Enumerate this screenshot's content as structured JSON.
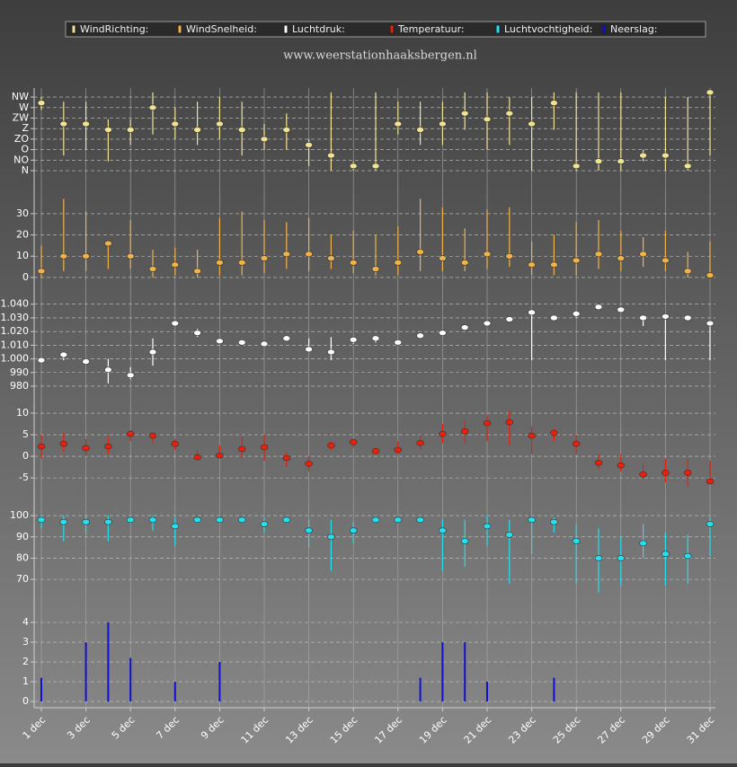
{
  "subtitle": "www.weerstationhaaksbergen.nl",
  "categories": [
    "1 dec",
    null,
    "3 dec",
    null,
    "5 dec",
    null,
    "7 dec",
    null,
    "9 dec",
    null,
    "11 dec",
    null,
    "13 dec",
    null,
    "15 dec",
    null,
    "17 dec",
    null,
    "19 dec",
    null,
    "21 dec",
    null,
    "23 dec",
    null,
    "25 dec",
    null,
    "27 dec",
    null,
    "29 dec",
    null,
    "31 dec"
  ],
  "grid": true,
  "chart_data": [
    {
      "type": "range",
      "ylim": [
        -23,
        346
      ],
      "yticks": [
        {
          "value": 0,
          "label": "N"
        },
        {
          "value": 45,
          "label": "NO"
        },
        {
          "value": 90,
          "label": "O"
        },
        {
          "value": 135,
          "label": "ZO"
        },
        {
          "value": 180,
          "label": "Z"
        },
        {
          "value": 225,
          "label": "ZW"
        },
        {
          "value": 270,
          "label": "W"
        },
        {
          "value": 315,
          "label": "NW"
        }
      ],
      "series": [
        {
          "name": "WindRichting:",
          "color": "#f2e394",
          "values": [
            290,
            200,
            200,
            175,
            175,
            270,
            200,
            175,
            200,
            175,
            135,
            175,
            110,
            65,
            20,
            20,
            200,
            175,
            200,
            245,
            220,
            245,
            200,
            290,
            20,
            40,
            40,
            65,
            65,
            20,
            335
          ],
          "high": [
            315,
            295,
            295,
            220,
            220,
            335,
            270,
            295,
            315,
            295,
            200,
            245,
            135,
            335,
            40,
            335,
            295,
            295,
            295,
            335,
            335,
            315,
            315,
            335,
            335,
            335,
            335,
            90,
            315,
            315,
            335
          ],
          "low": [
            260,
            65,
            90,
            40,
            110,
            155,
            135,
            110,
            135,
            65,
            90,
            90,
            20,
            0,
            0,
            0,
            155,
            110,
            110,
            175,
            90,
            110,
            0,
            175,
            0,
            0,
            0,
            40,
            0,
            0,
            65
          ]
        }
      ]
    },
    {
      "type": "range",
      "ylim": [
        -1.3,
        38.4
      ],
      "yticks": [
        0,
        10,
        20,
        30
      ],
      "series": [
        {
          "name": "WindSnelheid:",
          "color": "#f0b24a",
          "values": [
            3,
            10,
            10,
            16,
            10,
            4,
            6,
            3,
            7,
            7,
            9,
            11,
            11,
            9,
            7,
            4,
            7,
            12,
            9,
            7,
            11,
            10,
            6,
            6,
            8,
            11,
            9,
            11,
            8,
            3,
            1
          ],
          "high": [
            15,
            37,
            31,
            17,
            27,
            13,
            14,
            13,
            28,
            31,
            27,
            26,
            28,
            20,
            22,
            20,
            24,
            37,
            33,
            23,
            32,
            33,
            17,
            20,
            26,
            27,
            22,
            19,
            22,
            12,
            17
          ],
          "low": [
            0,
            3,
            3,
            4,
            4,
            0,
            1,
            0,
            1,
            1,
            2,
            4,
            3,
            4,
            2,
            1,
            1,
            3,
            3,
            3,
            4,
            5,
            1,
            1,
            1,
            4,
            3,
            5,
            3,
            0,
            0
          ]
        }
      ]
    },
    {
      "type": "range",
      "ylim": [
        973.4,
        1051
      ],
      "yticks": [
        980,
        990,
        {
          "value": 1000,
          "label": "1.000"
        },
        {
          "value": 1010,
          "label": "1.010"
        },
        {
          "value": 1020,
          "label": "1.020"
        },
        {
          "value": 1030,
          "label": "1.030"
        },
        {
          "value": 1040,
          "label": "1.040"
        }
      ],
      "series": [
        {
          "name": "Luchtdruk:",
          "color": "#ffffff",
          "values": [
            999,
            1003,
            998,
            992,
            988,
            1005,
            1026,
            1019,
            1013,
            1012,
            1011,
            1015,
            1007,
            1005,
            1014,
            1015,
            1012,
            1017,
            1019,
            1023,
            1026,
            1029,
            1034,
            1030,
            1033,
            1038,
            1036,
            1030,
            1031,
            1030,
            1026
          ],
          "high": [
            1000,
            1004,
            1000,
            1000,
            994,
            1015,
            1027,
            1022,
            1015,
            1013,
            1012,
            1017,
            1015,
            1016,
            1016,
            1017,
            1013,
            1018,
            1021,
            1025,
            1027,
            1031,
            1035,
            1032,
            1035,
            1039,
            1037,
            1031,
            1032,
            1031,
            1028
          ],
          "low": [
            997,
            999,
            996,
            982,
            985,
            995,
            1025,
            1016,
            1011,
            1011,
            1010,
            1013,
            1005,
            999,
            1011,
            1012,
            1011,
            1016,
            1017,
            1021,
            1025,
            1027,
            999,
            1028,
            1030,
            1036,
            1034,
            1024,
            999,
            1029,
            999
          ]
        }
      ]
    },
    {
      "type": "range",
      "ylim": [
        -10.8,
        12.5
      ],
      "yticks": [
        -5,
        0,
        5,
        10
      ],
      "series": [
        {
          "name": "Temperatuur:",
          "color": "#e8200c",
          "values": [
            2.3,
            2.9,
            1.9,
            2.3,
            5.2,
            4.8,
            2.9,
            -0.2,
            0.2,
            1.7,
            2.1,
            -0.4,
            -1.7,
            2.5,
            3.3,
            1.2,
            1.5,
            3.1,
            5.2,
            5.8,
            7.7,
            7.9,
            4.8,
            5.4,
            2.9,
            -1.5,
            -2.1,
            -4.2,
            -3.8,
            -3.8,
            -5.8
          ],
          "high": [
            5,
            5.5,
            4,
            4.5,
            6,
            5.5,
            4,
            1.5,
            2.5,
            4.5,
            5,
            1,
            0,
            3.5,
            4,
            2,
            3.5,
            5,
            7.5,
            8.5,
            9.5,
            10.5,
            7,
            6.5,
            5,
            0.5,
            0.5,
            -1.5,
            -0.5,
            -0.5,
            -1
          ],
          "low": [
            -0.5,
            1,
            0,
            0.5,
            3.5,
            3,
            1.5,
            -1,
            -0.5,
            -0.5,
            -1,
            -2.5,
            -3.5,
            1.5,
            2,
            0.5,
            0.5,
            1.5,
            3,
            3,
            3.5,
            2.5,
            0.5,
            3.5,
            0.5,
            -3,
            -3.5,
            -5,
            -6,
            -7,
            -6.5
          ]
        }
      ]
    },
    {
      "type": "range",
      "ylim": [
        59.5,
        105.1
      ],
      "yticks": [
        70,
        80,
        90,
        100
      ],
      "series": [
        {
          "name": "Luchtvochtigheid:",
          "color": "#22e0ee",
          "values": [
            98,
            97,
            97,
            97,
            98,
            98,
            95,
            98,
            98,
            98,
            96,
            98,
            93,
            90,
            93,
            98,
            98,
            98,
            93,
            88,
            95,
            91,
            98,
            97,
            88,
            80,
            80,
            87,
            82,
            81,
            96
          ],
          "high": [
            100,
            100,
            100,
            100,
            99,
            100,
            99,
            99,
            99,
            99,
            99,
            99,
            98,
            98,
            97,
            99,
            99,
            99,
            98,
            98,
            100,
            98,
            99,
            99,
            96,
            94,
            90,
            96,
            92,
            91,
            99
          ],
          "low": [
            94,
            88,
            91,
            88,
            97,
            93,
            86,
            97,
            97,
            97,
            92,
            97,
            85,
            74,
            87,
            97,
            97,
            97,
            74,
            76,
            86,
            68,
            82,
            92,
            68,
            64,
            67,
            80,
            67,
            68,
            81
          ]
        }
      ]
    },
    {
      "type": "bar",
      "ylim": [
        -0.27,
        4.5
      ],
      "yticks": [
        0,
        1,
        2,
        3,
        4
      ],
      "series": [
        {
          "name": "Neerslag:",
          "color": "#1010d0",
          "values": [
            1.2,
            0,
            3,
            4,
            2.2,
            0,
            1,
            0,
            2,
            0,
            0,
            0,
            0,
            0,
            0,
            0,
            0,
            1.2,
            3,
            3,
            1,
            0,
            0,
            1.2,
            0,
            0,
            0,
            0,
            0,
            0,
            0
          ]
        }
      ]
    }
  ]
}
